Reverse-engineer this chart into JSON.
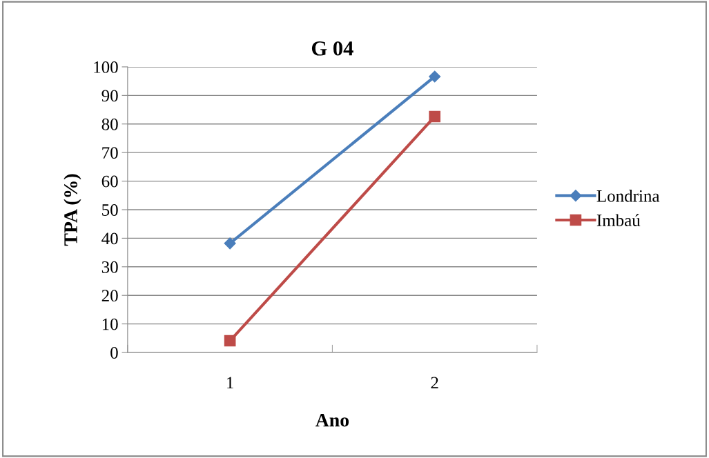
{
  "chart_data": {
    "type": "line",
    "title": "G 04",
    "xlabel": "Ano",
    "ylabel": "TPA (%)",
    "categories": [
      "1",
      "2"
    ],
    "series": [
      {
        "name": "Londrina",
        "color": "#4a7ebb",
        "values": [
          38.2,
          96.6
        ],
        "marker": "diamond"
      },
      {
        "name": "Imbaú",
        "color": "#be4b48",
        "values": [
          4.1,
          82.6
        ],
        "marker": "square"
      }
    ],
    "ylim": [
      0,
      100
    ],
    "yticks": [
      0,
      10,
      20,
      30,
      40,
      50,
      60,
      70,
      80,
      90,
      100
    ],
    "grid": "y",
    "legend": "right",
    "line_style": "solid"
  }
}
